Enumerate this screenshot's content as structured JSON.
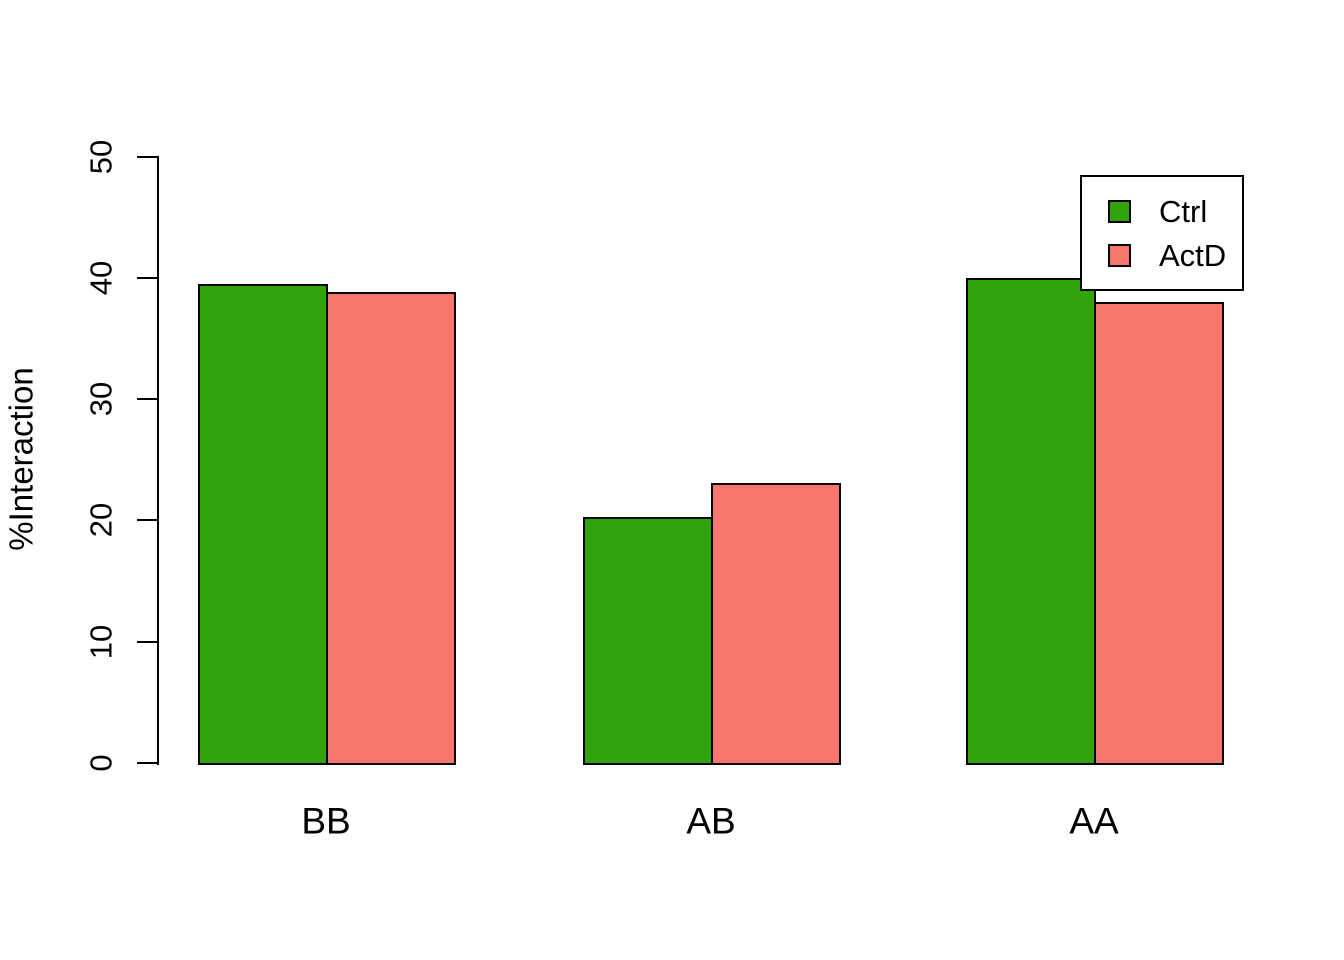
{
  "figure": {
    "background": "#FFFFFF",
    "axis_color": "#000000"
  },
  "chart_data": {
    "type": "bar",
    "title": "",
    "xlabel": "",
    "ylabel": "%Interaction",
    "categories": [
      "BB",
      "AB",
      "AA"
    ],
    "series": [
      {
        "name": "Ctrl",
        "color": "#2EA30C",
        "values": [
          39.5,
          20.3,
          40.0
        ]
      },
      {
        "name": "ActD",
        "color": "#F8766D",
        "values": [
          38.8,
          23.1,
          38.0
        ]
      }
    ],
    "ylim": [
      0,
      50
    ],
    "yticks": [
      0,
      10,
      20,
      30,
      40,
      50
    ],
    "grid": false,
    "bar_edge_color": "#000000",
    "legend_position": "top-right"
  }
}
